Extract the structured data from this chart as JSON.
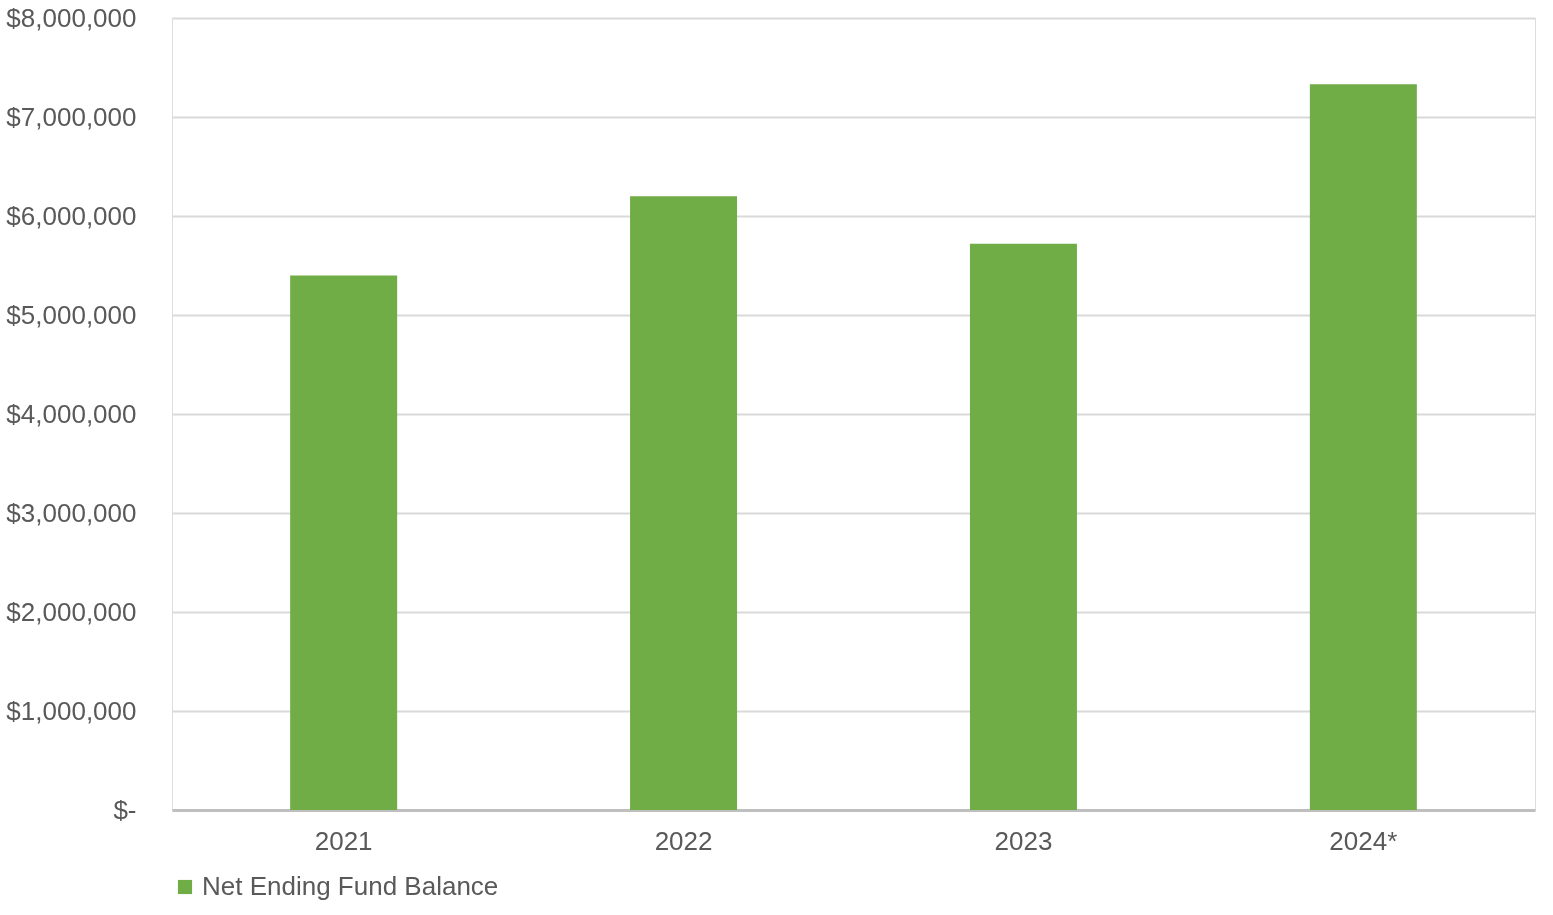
{
  "chart_data": {
    "type": "bar",
    "categories": [
      "2021",
      "2022",
      "2023",
      "2024*"
    ],
    "series": [
      {
        "name": "Net Ending Fund Balance",
        "color": "#70ad47",
        "values": [
          5400000,
          6200000,
          5720000,
          7330000
        ]
      }
    ],
    "ylim": [
      0,
      8000000
    ],
    "yticks": [
      {
        "value": 0,
        "label": "$-"
      },
      {
        "value": 1000000,
        "label": "$1,000,000"
      },
      {
        "value": 2000000,
        "label": "$2,000,000"
      },
      {
        "value": 3000000,
        "label": "$3,000,000"
      },
      {
        "value": 4000000,
        "label": "$4,000,000"
      },
      {
        "value": 5000000,
        "label": "$5,000,000"
      },
      {
        "value": 6000000,
        "label": "$6,000,000"
      },
      {
        "value": 7000000,
        "label": "$7,000,000"
      },
      {
        "value": 8000000,
        "label": "$8,000,000"
      }
    ],
    "grid": "y",
    "legend": "bottom"
  }
}
